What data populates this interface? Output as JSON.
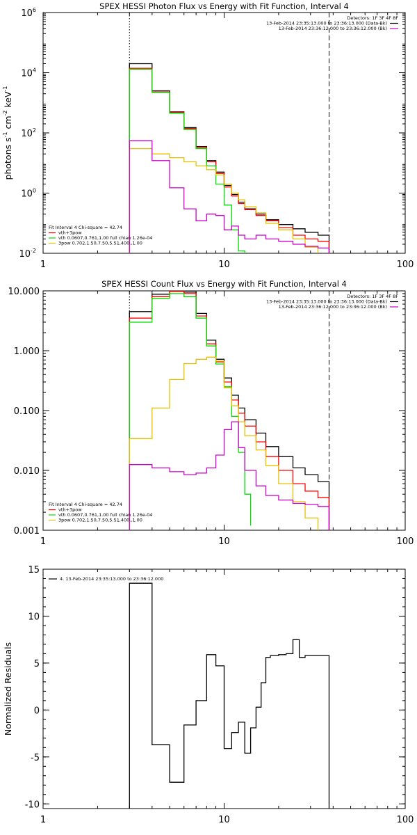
{
  "chart_data": [
    {
      "type": "line",
      "title": "SPEX HESSI Photon Flux vs Energy with Fit Function, Interval 4",
      "ylabel": "photons s",
      "ylabel_parts": [
        "-1",
        " cm",
        "-2",
        " keV",
        "-1"
      ],
      "xscale": "log",
      "yscale": "log",
      "xlim": [
        1,
        100
      ],
      "ylim": [
        0.01,
        1000000
      ],
      "x_ticks": [
        {
          "v": 1,
          "label": "1"
        },
        {
          "v": 10,
          "label": "10"
        },
        {
          "v": 100,
          "label": "100"
        }
      ],
      "y_ticks": [
        {
          "v": 0.01,
          "base": "10",
          "exp": "-2"
        },
        {
          "v": 1,
          "base": "10",
          "exp": "0"
        },
        {
          "v": 100,
          "base": "10",
          "exp": "2"
        },
        {
          "v": 10000,
          "base": "10",
          "exp": "4"
        },
        {
          "v": 1000000,
          "base": "10",
          "exp": "6"
        }
      ],
      "vlines": [
        {
          "x": 3.0,
          "style": "dotted"
        },
        {
          "x": 38.0,
          "style": "dashed"
        }
      ],
      "legend_top": {
        "position": "top-right",
        "header": "Detectors: 1F 3F 4F 8F",
        "entries": [
          {
            "label": "13-Feb-2014 23:35:13.000 to 23:36:13.000 (Data-Bk)",
            "color": "#000000"
          },
          {
            "label": "13-Feb-2014 23:36:12.000 to 23:36:12.000 (Bk)",
            "color": "#cc00cc"
          }
        ]
      },
      "legend_bottom": {
        "position": "bottom-left",
        "header": "Fit Interval 4   Chi-square = 42.74",
        "entries": [
          {
            "label": "vth+3pow",
            "color": "#ff0000"
          },
          {
            "label": "vth 0.0607,0.761,1.00  full chian 1.26e-04",
            "color": "#00dd00"
          },
          {
            "label": "3pow 0.702,1.50,7.50,5.51,400.,1.00",
            "color": "#e6c000"
          }
        ]
      },
      "series": [
        {
          "color": "#000000",
          "edges": [
            3,
            4,
            5,
            6,
            7,
            8,
            9,
            10,
            11,
            12,
            13,
            15,
            17,
            20,
            24,
            28,
            33,
            38
          ],
          "values": [
            20000,
            2500,
            500,
            150,
            35,
            12,
            5,
            1.8,
            0.9,
            0.5,
            0.3,
            0.2,
            0.13,
            0.09,
            0.065,
            0.05,
            0.04
          ]
        },
        {
          "color": "#ff0000",
          "edges": [
            3,
            4,
            5,
            6,
            7,
            8,
            9,
            10,
            11,
            12,
            13,
            15,
            17,
            20,
            24,
            28,
            33,
            38
          ],
          "values": [
            14000,
            2300,
            480,
            140,
            33,
            11,
            4.5,
            1.6,
            0.8,
            0.45,
            0.28,
            0.18,
            0.12,
            0.07,
            0.04,
            0.03,
            0.025
          ]
        },
        {
          "color": "#00dd00",
          "edges": [
            3,
            4,
            5,
            6,
            7,
            8,
            9,
            10,
            11,
            12,
            13
          ],
          "values": [
            13000,
            2200,
            450,
            130,
            30,
            8,
            2,
            0.4,
            0.06,
            0.012
          ]
        },
        {
          "color": "#e6c000",
          "edges": [
            3,
            4,
            5,
            6,
            7,
            8,
            9,
            10,
            11,
            12,
            13,
            15,
            17,
            20,
            24,
            28,
            33
          ],
          "values": [
            30,
            20,
            15,
            11,
            8,
            6,
            4,
            2,
            1,
            0.6,
            0.35,
            0.22,
            0.1,
            0.06,
            0.03,
            0.016
          ]
        },
        {
          "color": "#cc00cc",
          "edges": [
            3,
            4,
            5,
            6,
            7,
            8,
            9,
            10,
            11,
            12,
            13,
            15,
            17,
            20,
            24,
            28,
            33,
            38
          ],
          "values": [
            55,
            12,
            1.5,
            0.3,
            0.12,
            0.2,
            0.18,
            0.06,
            0.08,
            0.04,
            0.03,
            0.04,
            0.03,
            0.025,
            0.02,
            0.017,
            0.015
          ]
        }
      ]
    },
    {
      "type": "line",
      "title": "SPEX HESSI Count Flux vs Energy with Fit Function, Interval 4",
      "xscale": "log",
      "yscale": "log",
      "xlim": [
        1,
        100
      ],
      "ylim": [
        0.001,
        10
      ],
      "x_ticks": [
        {
          "v": 1,
          "label": "1"
        },
        {
          "v": 10,
          "label": "10"
        },
        {
          "v": 100,
          "label": "100"
        }
      ],
      "y_ticks": [
        {
          "v": 0.001,
          "label": "0.001"
        },
        {
          "v": 0.01,
          "label": "0.010"
        },
        {
          "v": 0.1,
          "label": "0.100"
        },
        {
          "v": 1,
          "label": "1.000"
        },
        {
          "v": 10,
          "label": "10.000"
        }
      ],
      "vlines": [
        {
          "x": 3.0,
          "style": "dotted"
        },
        {
          "x": 38.0,
          "style": "dashed"
        }
      ],
      "legend_top": {
        "position": "top-right",
        "header": "Detectors: 1F 3F 4F 8F",
        "entries": [
          {
            "label": "13-Feb-2014 23:35:13.000 to 23:36:13.000 (Data-Bk)",
            "color": "#000000"
          },
          {
            "label": "13-Feb-2014 23:36:12.000 to 23:36:12.000 (Bk)",
            "color": "#cc00cc"
          }
        ]
      },
      "legend_bottom": {
        "position": "bottom-left",
        "header": "Fit Interval 4   Chi-square = 42.74",
        "entries": [
          {
            "label": "vth+3pow",
            "color": "#ff0000"
          },
          {
            "label": "vth 0.0607,0.761,1.00  full chian 1.26e-04",
            "color": "#00dd00"
          },
          {
            "label": "3pow 0.702,1.50,7.50,5.51,400.,1.00",
            "color": "#e6c000"
          }
        ]
      },
      "series": [
        {
          "color": "#000000",
          "edges": [
            3,
            4,
            5,
            6,
            7,
            8,
            9,
            10,
            11,
            12,
            13,
            15,
            17,
            20,
            24,
            28,
            33,
            38
          ],
          "values": [
            4.5,
            8.8,
            10.5,
            9.5,
            4.2,
            1.5,
            0.72,
            0.35,
            0.18,
            0.11,
            0.07,
            0.042,
            0.025,
            0.017,
            0.011,
            0.0085,
            0.0065
          ]
        },
        {
          "color": "#ff0000",
          "edges": [
            3,
            4,
            5,
            6,
            7,
            8,
            9,
            10,
            11,
            12,
            13,
            15,
            17,
            20,
            24,
            28,
            33,
            38
          ],
          "values": [
            3.5,
            8.0,
            9.8,
            9.0,
            3.8,
            1.3,
            0.65,
            0.3,
            0.15,
            0.09,
            0.055,
            0.03,
            0.017,
            0.01,
            0.006,
            0.0045,
            0.0035
          ]
        },
        {
          "color": "#00dd00",
          "edges": [
            3,
            4,
            5,
            6,
            7,
            8,
            9,
            10,
            11,
            12,
            13,
            14
          ],
          "values": [
            3.0,
            7.5,
            9.0,
            8.0,
            3.5,
            1.2,
            0.6,
            0.25,
            0.08,
            0.02,
            0.004,
            0.0012
          ]
        },
        {
          "color": "#e6c000",
          "edges": [
            3,
            4,
            5,
            6,
            7,
            8,
            9,
            10,
            11,
            12,
            13,
            15,
            17,
            20,
            24,
            28,
            33
          ],
          "values": [
            0.034,
            0.11,
            0.33,
            0.61,
            0.72,
            0.78,
            0.67,
            0.24,
            0.12,
            0.065,
            0.038,
            0.022,
            0.012,
            0.006,
            0.003,
            0.0016
          ]
        },
        {
          "color": "#cc00cc",
          "edges": [
            3,
            4,
            5,
            6,
            7,
            8,
            9,
            10,
            11,
            12,
            13,
            15,
            17,
            20,
            24,
            28,
            33,
            38
          ],
          "values": [
            0.0125,
            0.011,
            0.0095,
            0.0085,
            0.009,
            0.011,
            0.018,
            0.048,
            0.065,
            0.024,
            0.01,
            0.0055,
            0.0038,
            0.0032,
            0.0028,
            0.0027,
            0.0025
          ]
        }
      ]
    },
    {
      "type": "line",
      "ylabel": "Normalized Residuals",
      "xscale": "log",
      "yscale": "linear",
      "xlim": [
        1,
        100
      ],
      "ylim": [
        -10.5,
        15
      ],
      "x_ticks": [
        {
          "v": 1,
          "label": "1"
        },
        {
          "v": 10,
          "label": "10"
        },
        {
          "v": 100,
          "label": "100"
        }
      ],
      "y_ticks": [
        {
          "v": -10,
          "label": "-10"
        },
        {
          "v": -5,
          "label": "-5"
        },
        {
          "v": 0,
          "label": "0"
        },
        {
          "v": 5,
          "label": "5"
        },
        {
          "v": 10,
          "label": "10"
        },
        {
          "v": 15,
          "label": "15"
        }
      ],
      "legend_top": {
        "position": "top-left",
        "entries": [
          {
            "label": "4. 13-Feb-2014 23:35:13.000 to 23:36:12.000",
            "color": "#000000"
          }
        ]
      },
      "series": [
        {
          "color": "#000000",
          "edges": [
            3,
            4,
            5,
            6,
            7,
            8,
            9,
            10,
            11,
            12,
            13,
            14,
            15,
            16,
            17,
            18,
            20,
            22,
            24,
            26,
            28,
            30,
            33,
            38
          ],
          "values": [
            13.5,
            -3.7,
            -7.7,
            -1.6,
            1.0,
            5.9,
            4.7,
            -4.1,
            -2.4,
            -1.3,
            -4.6,
            -1.9,
            0.3,
            2.9,
            5.6,
            5.8,
            5.9,
            6.0,
            7.5,
            5.6,
            5.8,
            5.8,
            5.8
          ]
        }
      ]
    }
  ]
}
